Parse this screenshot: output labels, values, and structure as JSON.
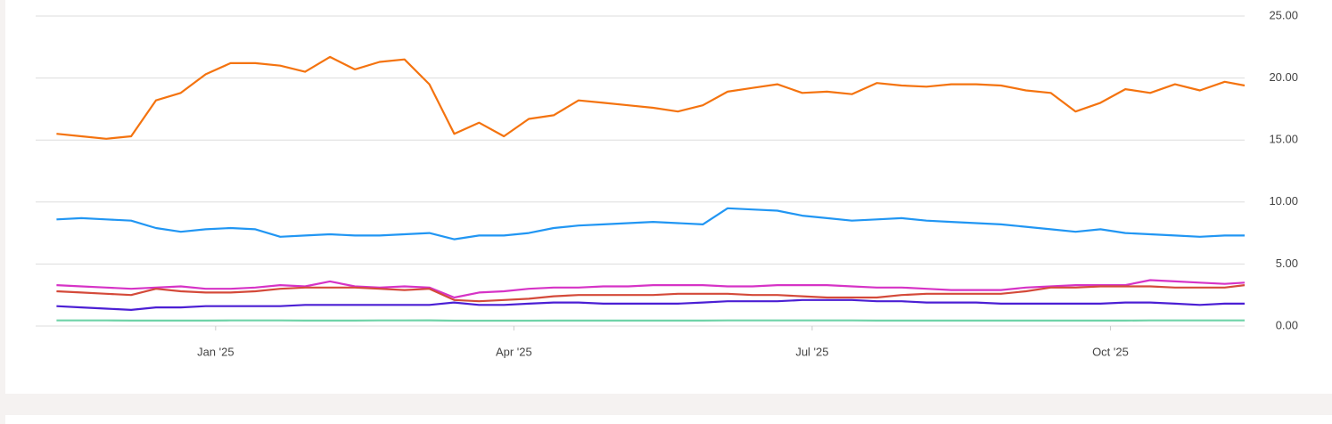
{
  "chart_data": {
    "type": "line",
    "x": [
      -1.6,
      -1.35,
      -1.1,
      -0.85,
      -0.6,
      -0.35,
      -0.1,
      0.15,
      0.4,
      0.65,
      0.9,
      1.15,
      1.4,
      1.65,
      1.9,
      2.15,
      2.4,
      2.65,
      2.9,
      3.15,
      3.4,
      3.65,
      3.9,
      4.15,
      4.4,
      4.65,
      4.9,
      5.15,
      5.4,
      5.65,
      5.9,
      6.15,
      6.4,
      6.65,
      6.9,
      7.15,
      7.4,
      7.65,
      7.9,
      8.15,
      8.4,
      8.65,
      8.9,
      9.15,
      9.4,
      9.65,
      9.9,
      10.15,
      10.35
    ],
    "xlim": [
      -1.81,
      10.35
    ],
    "xticks": [
      {
        "value": 0,
        "label": "Jan '25"
      },
      {
        "value": 3,
        "label": "Apr '25"
      },
      {
        "value": 6,
        "label": "Jul '25"
      },
      {
        "value": 9,
        "label": "Oct '25"
      }
    ],
    "ylim": [
      0,
      25
    ],
    "yticks": [
      {
        "value": 0,
        "label": "0.00"
      },
      {
        "value": 5,
        "label": "5.00"
      },
      {
        "value": 10,
        "label": "10.00"
      },
      {
        "value": 15,
        "label": "15.00"
      },
      {
        "value": 20,
        "label": "20.00"
      },
      {
        "value": 25,
        "label": "25.00"
      }
    ],
    "grid": true,
    "series": [
      {
        "color": "#f4730f",
        "values": [
          15.5,
          15.3,
          15.1,
          15.3,
          18.2,
          18.8,
          20.3,
          21.2,
          21.2,
          21.0,
          20.5,
          21.7,
          20.7,
          21.3,
          21.5,
          19.5,
          15.5,
          16.4,
          15.3,
          16.7,
          17.0,
          18.2,
          18.0,
          17.8,
          17.6,
          17.3,
          17.8,
          18.9,
          19.2,
          19.5,
          18.8,
          18.9,
          18.7,
          19.6,
          19.4,
          19.3,
          19.5,
          19.5,
          19.4,
          19.0,
          18.8,
          17.3,
          18.0,
          19.1,
          18.8,
          19.5,
          19.0,
          19.7,
          19.4
        ]
      },
      {
        "color": "#2196f3",
        "values": [
          8.6,
          8.7,
          8.6,
          8.5,
          7.9,
          7.6,
          7.8,
          7.9,
          7.8,
          7.2,
          7.3,
          7.4,
          7.3,
          7.3,
          7.4,
          7.5,
          7.0,
          7.3,
          7.3,
          7.5,
          7.9,
          8.1,
          8.2,
          8.3,
          8.4,
          8.3,
          8.2,
          9.5,
          9.4,
          9.3,
          8.9,
          8.7,
          8.5,
          8.6,
          8.7,
          8.5,
          8.4,
          8.3,
          8.2,
          8.0,
          7.8,
          7.6,
          7.8,
          7.5,
          7.4,
          7.3,
          7.2,
          7.3,
          7.3
        ]
      },
      {
        "color": "#d633c6",
        "values": [
          3.3,
          3.2,
          3.1,
          3.0,
          3.1,
          3.2,
          3.0,
          3.0,
          3.1,
          3.3,
          3.2,
          3.6,
          3.2,
          3.1,
          3.2,
          3.1,
          2.3,
          2.7,
          2.8,
          3.0,
          3.1,
          3.1,
          3.2,
          3.2,
          3.3,
          3.3,
          3.3,
          3.2,
          3.2,
          3.3,
          3.3,
          3.3,
          3.2,
          3.1,
          3.1,
          3.0,
          2.9,
          2.9,
          2.9,
          3.1,
          3.2,
          3.3,
          3.3,
          3.3,
          3.7,
          3.6,
          3.5,
          3.4,
          3.5
        ]
      },
      {
        "color": "#d44a3a",
        "values": [
          2.8,
          2.7,
          2.6,
          2.5,
          3.0,
          2.8,
          2.7,
          2.7,
          2.8,
          3.0,
          3.1,
          3.1,
          3.1,
          3.0,
          2.9,
          3.0,
          2.1,
          2.0,
          2.1,
          2.2,
          2.4,
          2.5,
          2.5,
          2.5,
          2.5,
          2.6,
          2.6,
          2.6,
          2.5,
          2.5,
          2.4,
          2.3,
          2.3,
          2.3,
          2.5,
          2.6,
          2.6,
          2.6,
          2.6,
          2.8,
          3.1,
          3.1,
          3.2,
          3.2,
          3.2,
          3.1,
          3.1,
          3.1,
          3.3
        ]
      },
      {
        "color": "#4b1fd4",
        "values": [
          1.6,
          1.5,
          1.4,
          1.3,
          1.5,
          1.5,
          1.6,
          1.6,
          1.6,
          1.6,
          1.7,
          1.7,
          1.7,
          1.7,
          1.7,
          1.7,
          1.9,
          1.7,
          1.7,
          1.8,
          1.9,
          1.9,
          1.8,
          1.8,
          1.8,
          1.8,
          1.9,
          2.0,
          2.0,
          2.0,
          2.1,
          2.1,
          2.1,
          2.0,
          2.0,
          1.9,
          1.9,
          1.9,
          1.8,
          1.8,
          1.8,
          1.8,
          1.8,
          1.9,
          1.9,
          1.8,
          1.7,
          1.8,
          1.8
        ]
      },
      {
        "color": "#6fd3a8",
        "values": [
          0.45,
          0.45,
          0.45,
          0.44,
          0.44,
          0.44,
          0.44,
          0.45,
          0.45,
          0.45,
          0.44,
          0.44,
          0.44,
          0.45,
          0.45,
          0.46,
          0.43,
          0.43,
          0.43,
          0.43,
          0.44,
          0.44,
          0.44,
          0.44,
          0.44,
          0.44,
          0.44,
          0.45,
          0.45,
          0.45,
          0.45,
          0.45,
          0.45,
          0.44,
          0.44,
          0.44,
          0.44,
          0.44,
          0.44,
          0.44,
          0.44,
          0.44,
          0.44,
          0.44,
          0.45,
          0.45,
          0.45,
          0.45,
          0.45
        ]
      }
    ]
  }
}
